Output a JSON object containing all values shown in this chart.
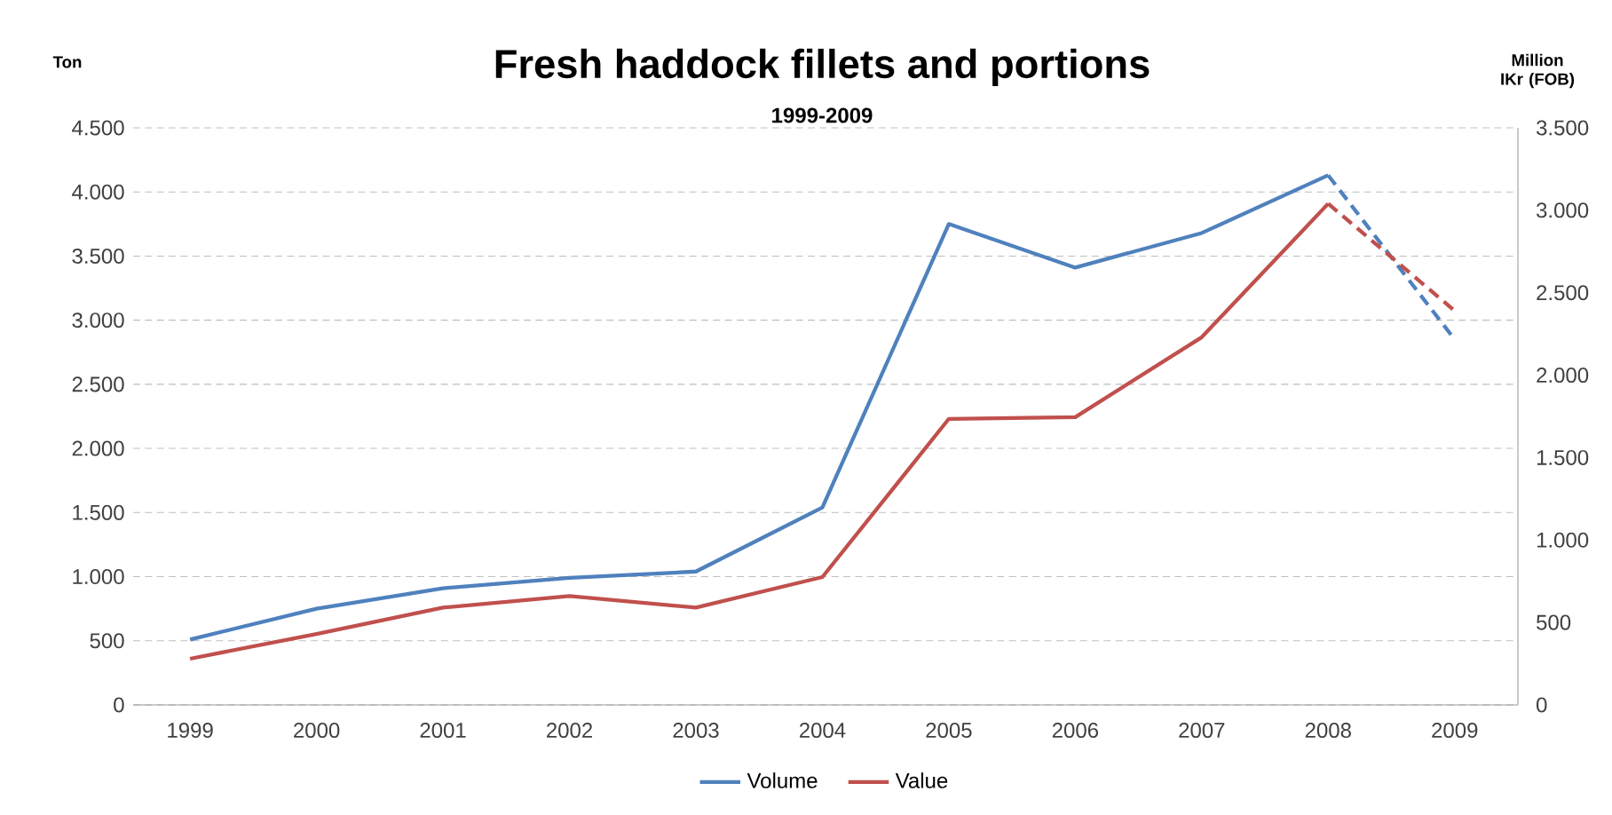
{
  "chart_data": {
    "type": "line",
    "title": "Fresh haddock fillets and portions",
    "subtitle": "1999-2009",
    "ylabel": "Ton",
    "y2label": "Million IKr (FOB)",
    "categories": [
      "1999",
      "2000",
      "2001",
      "2002",
      "2003",
      "2004",
      "2005",
      "2006",
      "2007",
      "2008",
      "2009"
    ],
    "series": [
      {
        "name": "Volume",
        "color": "#4f81bd",
        "axis": "y",
        "line_style": "solid",
        "values": [
          510,
          750,
          910,
          990,
          1040,
          1540,
          3750,
          3410,
          3680,
          4130,
          null
        ]
      },
      {
        "name": "Value",
        "color": "#c0504d",
        "axis": "y2",
        "line_style": "solid",
        "values": [
          280,
          430,
          590,
          660,
          590,
          775,
          1735,
          1745,
          2230,
          3040,
          null
        ]
      },
      {
        "color": "#4f81bd",
        "axis": "y",
        "line_style": "dashed",
        "values": [
          null,
          null,
          null,
          null,
          null,
          null,
          null,
          null,
          null,
          4130,
          2850
        ]
      },
      {
        "color": "#c0504d",
        "axis": "y2",
        "line_style": "dashed",
        "values": [
          null,
          null,
          null,
          null,
          null,
          null,
          null,
          null,
          null,
          3040,
          2390
        ]
      }
    ],
    "ylim": [
      0,
      4500
    ],
    "yticks": [
      {
        "value": 0,
        "label": "0"
      },
      {
        "value": 500,
        "label": "500"
      },
      {
        "value": 1000,
        "label": "1.000"
      },
      {
        "value": 1500,
        "label": "1.500"
      },
      {
        "value": 2000,
        "label": "2.000"
      },
      {
        "value": 2500,
        "label": "2.500"
      },
      {
        "value": 3000,
        "label": "3.000"
      },
      {
        "value": 3500,
        "label": "3.500"
      },
      {
        "value": 4000,
        "label": "4.000"
      },
      {
        "value": 4500,
        "label": "4.500"
      }
    ],
    "y2lim": [
      0,
      3500
    ],
    "y2ticks": [
      {
        "value": 0,
        "label": "0"
      },
      {
        "value": 500,
        "label": "500"
      },
      {
        "value": 1000,
        "label": "1.000"
      },
      {
        "value": 1500,
        "label": "1.500"
      },
      {
        "value": 2000,
        "label": "2.000"
      },
      {
        "value": 2500,
        "label": "2.500"
      },
      {
        "value": 3000,
        "label": "3.000"
      },
      {
        "value": 3500,
        "label": "3.500"
      }
    ],
    "grid": "y",
    "legend": "bottom",
    "marker": "none"
  }
}
